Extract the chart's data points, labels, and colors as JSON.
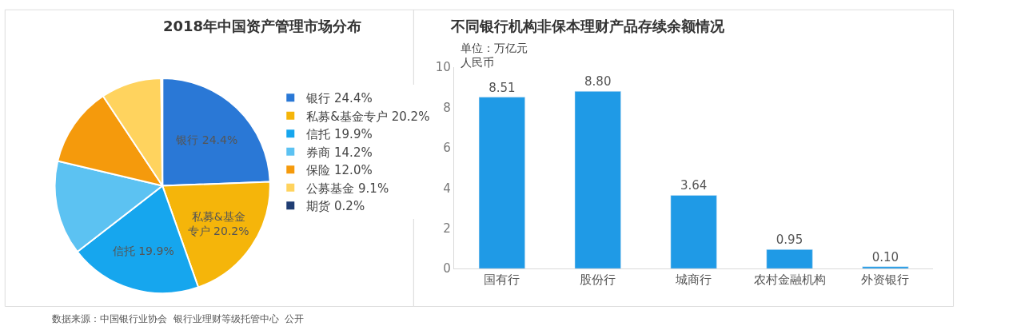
{
  "chart_data": [
    {
      "type": "pie",
      "title": "2018年中国资产管理市场分布",
      "categories": [
        "银行 24.4%",
        "私募&基金专户 20.2%",
        "信托 19.9%",
        "券商 14.2%",
        "保险 12.0%",
        "公募基金 9.1%",
        "期货 0.2%"
      ],
      "values": [
        24.4,
        20.2,
        19.9,
        14.2,
        12.0,
        9.1,
        0.2
      ],
      "value_labels": [
        "银行 24.4%",
        "私募&基金专户 20.2%",
        "信托 19.9%",
        null,
        null,
        null,
        null
      ],
      "colors": [
        "#2a78d6",
        "#f5b50a",
        "#16a6ee",
        "#5cc2f2",
        "#f59a0c",
        "#ffd35e",
        "#1f3d73"
      ],
      "legend": "right"
    },
    {
      "type": "bar",
      "title": "不同银行机构非保本理财产品存续余额情况",
      "ylabel": "单位：万亿元人民币",
      "categories": [
        "国有行",
        "股份行",
        "城商行",
        "农村金融机构",
        "外资银行"
      ],
      "values": [
        8.51,
        8.8,
        3.64,
        0.95,
        0.1
      ],
      "color": "#1f9ae6",
      "ylim": [
        0,
        10
      ],
      "yticks": [
        0,
        2,
        4,
        6,
        8,
        10
      ],
      "value_labels": [
        "8.51",
        "8.80",
        "3.64",
        "0.95",
        "0.10"
      ],
      "annotations": [
        "数据来源：中国银行业协会  银行业理财等级托管中心  公开"
      ]
    }
  ]
}
